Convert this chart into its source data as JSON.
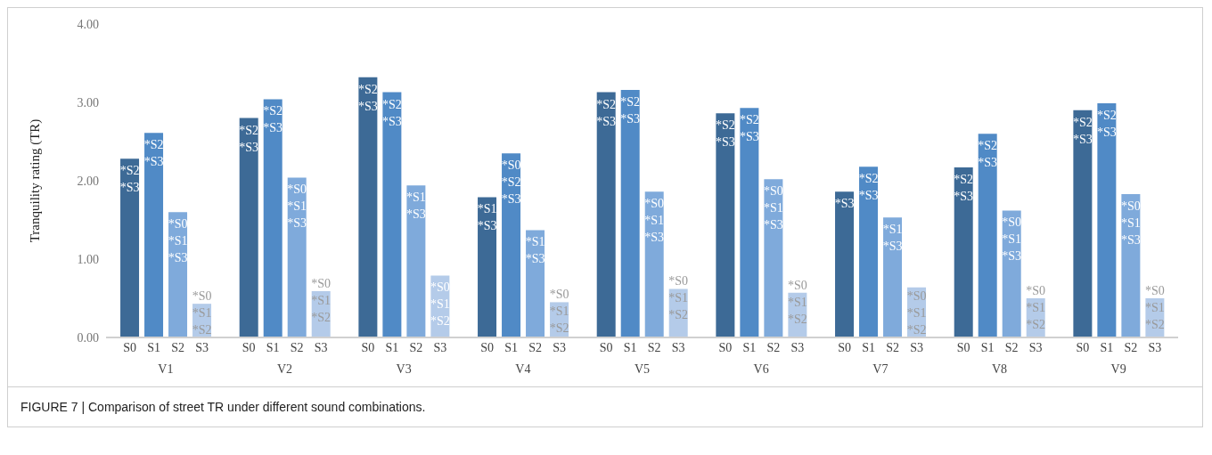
{
  "chart_data": {
    "type": "bar",
    "ylabel": "Tranquility rating (TR)",
    "categories": [
      "V1",
      "V2",
      "V3",
      "V4",
      "V5",
      "V6",
      "V7",
      "V8",
      "V9"
    ],
    "series": [
      {
        "name": "S0",
        "color": "#3d6a96",
        "values": [
          2.28,
          2.8,
          3.32,
          1.79,
          3.13,
          2.86,
          1.86,
          2.17,
          2.9
        ],
        "value_labels": [
          "*S2\n*S3",
          "*S2\n*S3",
          "*S2\n*S3",
          "*S1\n*S3",
          "*S2\n*S3",
          "*S2\n*S3",
          "*S3",
          "*S2\n*S3",
          "*S2\n*S3"
        ]
      },
      {
        "name": "S1",
        "color": "#508ac6",
        "values": [
          2.61,
          3.04,
          3.13,
          2.35,
          3.16,
          2.93,
          2.18,
          2.6,
          2.99
        ],
        "value_labels": [
          "*S2\n*S3",
          "*S2\n*S3",
          "*S2\n*S3",
          "*S0\n*S2\n*S3",
          "*S2\n*S3",
          "*S2\n*S3",
          "*S2\n*S3",
          "*S2\n*S3",
          "*S2\n*S3"
        ]
      },
      {
        "name": "S2",
        "color": "#7faadb",
        "values": [
          1.6,
          2.04,
          1.94,
          1.37,
          1.86,
          2.02,
          1.53,
          1.62,
          1.83
        ],
        "value_labels": [
          "*S0\n*S1\n*S3",
          "*S0\n*S1\n*S3",
          "*S1\n*S3",
          "*S1\n*S3",
          "*S0\n*S1\n*S3",
          "*S0\n*S1\n*S3",
          "*S1\n*S3",
          "*S0\n*S1\n*S3",
          "*S0\n*S1\n*S3"
        ]
      },
      {
        "name": "S3",
        "color": "#b4cbe9",
        "values": [
          0.43,
          0.59,
          0.79,
          0.45,
          0.62,
          0.57,
          0.64,
          0.5,
          0.5
        ],
        "value_labels": [
          "*S0\n*S1\n*S2",
          "*S0\n*S1\n*S2",
          "*S0\n*S1\n*S2",
          "*S0\n*S1\n*S2",
          "*S0\n*S1\n*S2",
          "*S0\n*S1\n*S2",
          "*S0\n*S1\n*S2",
          "*S0\n*S1\n*S2",
          "*S0\n*S1\n*S2"
        ]
      }
    ],
    "ylim": [
      0,
      4
    ],
    "yticks": [
      {
        "value": 0,
        "label": "0.00"
      },
      {
        "value": 1,
        "label": "1.00"
      },
      {
        "value": 2,
        "label": "2.00"
      },
      {
        "value": 3,
        "label": "3.00"
      },
      {
        "value": 4,
        "label": "4.00"
      }
    ],
    "grid": false,
    "legend": false,
    "annotations": [
      "FIGURE 7 | Comparison of street TR under different sound combinations."
    ]
  }
}
